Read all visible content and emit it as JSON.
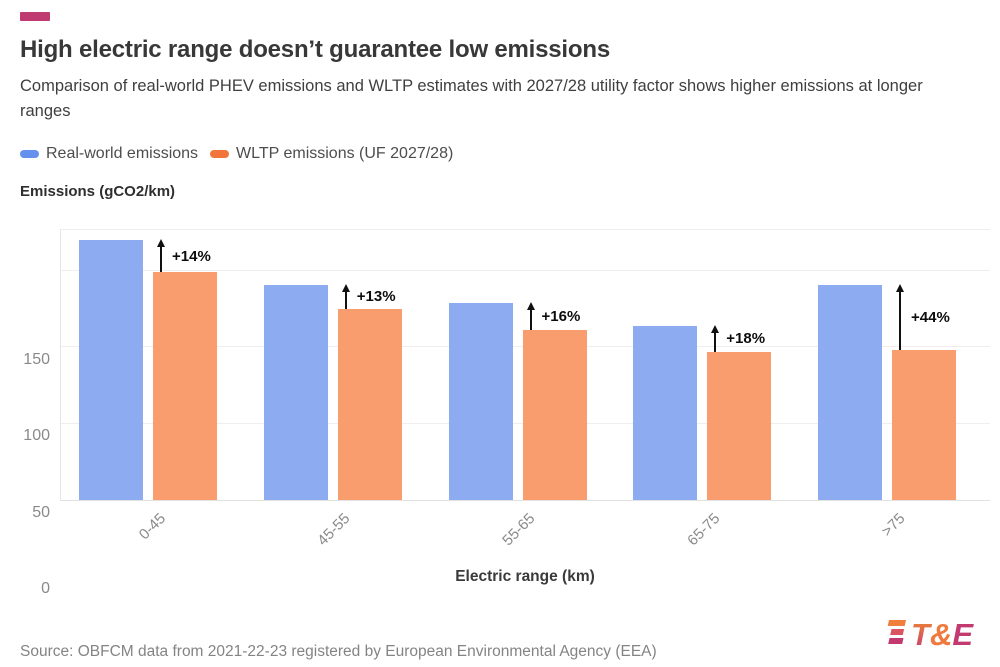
{
  "page": {
    "title": "High electric range doesn’t guarantee low emissions",
    "subtitle": "Comparison of real-world PHEV emissions and WLTP estimates with 2027/28 utility factor shows higher emissions at longer ranges",
    "source": "Source: OBFCM data from 2021-22-23 registered by European Environmental Agency (EEA)",
    "accent_color": "#bf3a70",
    "logo": {
      "text": "T&E",
      "amp_color": "#f0793c",
      "e_color": "#c23a70",
      "gradient_top": "#f08a34",
      "gradient_bottom": "#c23a70"
    }
  },
  "chart_data": {
    "type": "bar",
    "title": "High electric range doesn’t guarantee low emissions",
    "ylabel": "Emissions (gCO2/km)",
    "xlabel": "Electric range (km)",
    "categories": [
      "0-45",
      "45-55",
      "55-65",
      "65-75",
      ">75"
    ],
    "series": [
      {
        "name": "Real-world emissions",
        "color": "#8dabf0",
        "legend_color": "#6590ee",
        "values": [
          170,
          141,
          129,
          114,
          141
        ]
      },
      {
        "name": "WLTP emissions (UF 2027/28)",
        "color": "#f99d6e",
        "legend_color": "#f2763c",
        "values": [
          149,
          125,
          111,
          97,
          98
        ]
      }
    ],
    "annotations": [
      "+14%",
      "+13%",
      "+16%",
      "+18%",
      "+44%"
    ],
    "yticks": [
      0,
      50,
      100,
      150
    ],
    "ylim": [
      0,
      178
    ],
    "grid": "horizontal",
    "legend_position": "top"
  }
}
